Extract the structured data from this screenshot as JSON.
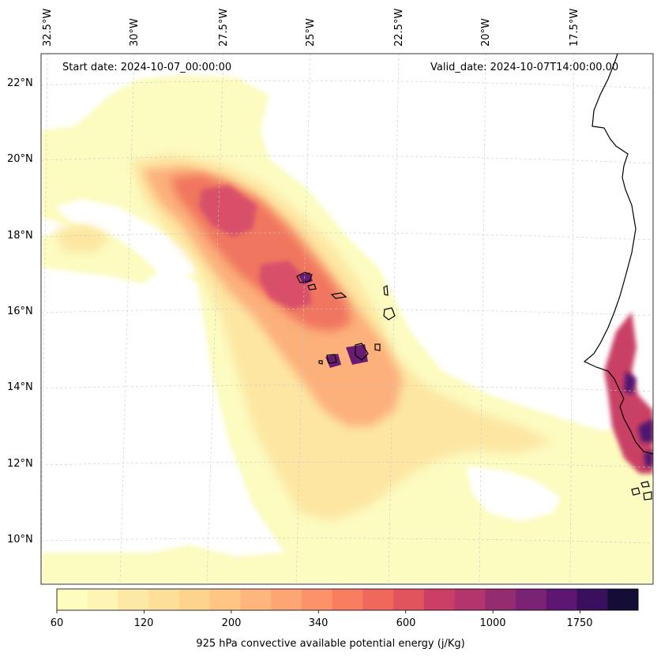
{
  "map": {
    "start_date": "Start date: 2024-10-07_00:00:00",
    "valid_date": "Valid_date: 2024-10-07T14:00:00.00",
    "lon_labels": [
      "32.5°W",
      "30°W",
      "27.5°W",
      "25°W",
      "22.5°W",
      "20°W",
      "17.5°W"
    ],
    "lat_labels": [
      "22°N",
      "20°N",
      "18°N",
      "16°N",
      "14°N",
      "12°N",
      "10°N"
    ]
  },
  "colorbar": {
    "label": "925 hPa convective available potential energy (j/Kg)",
    "tick_labels": [
      "60",
      "120",
      "200",
      "340",
      "600",
      "1000",
      "1750"
    ],
    "colors": [
      "#fcfdbf",
      "#fdf4b5",
      "#fde9a6",
      "#fedf99",
      "#fed38d",
      "#fec585",
      "#feb67c",
      "#fea574",
      "#fc926a",
      "#f87d61",
      "#f0675c",
      "#e1535d",
      "#cb3f65",
      "#b2366c",
      "#962c70",
      "#7a2273",
      "#5e1673",
      "#3a0f5e",
      "#140e36"
    ]
  }
}
